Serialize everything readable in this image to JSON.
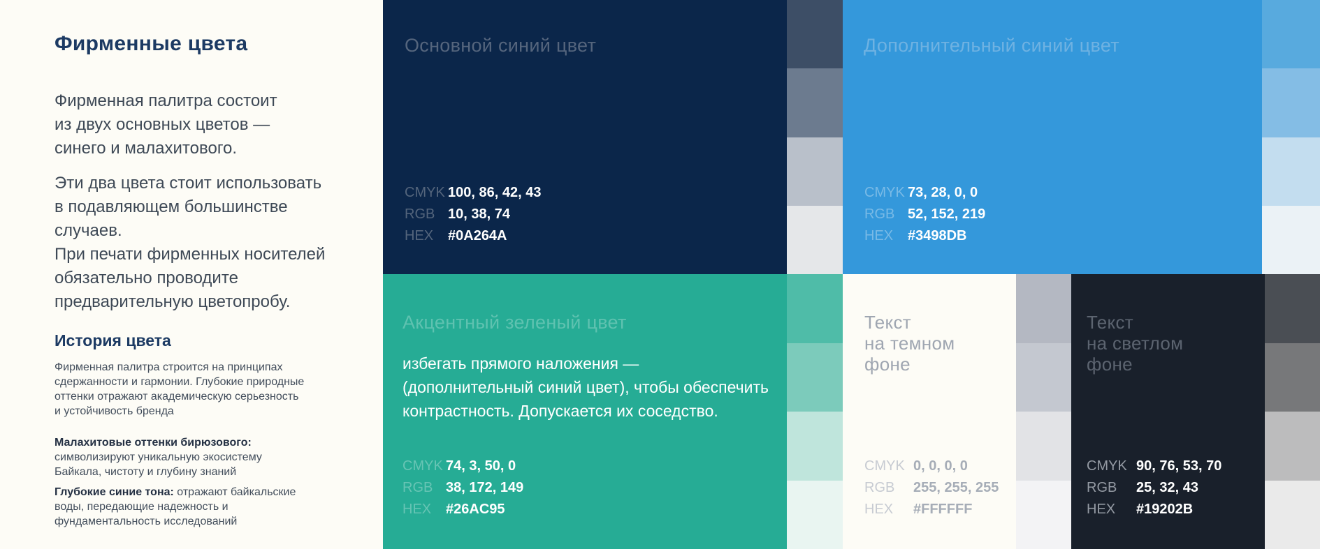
{
  "page": {
    "background": "#FDFCF6"
  },
  "left_panel": {
    "title": "Фирменные цвета",
    "intro_lines": [
      "Фирменная палитра состоит",
      "из двух основных цветов —",
      "синего и малахитового."
    ],
    "usage_lines": [
      "Эти два цвета стоит использовать",
      "в подавляющем большинстве случаев.",
      "При печати фирменных носителей",
      "обязательно  проводите",
      "предварительную цветопробу."
    ],
    "history_heading": "История цвета",
    "history_lines": [
      "Фирменная палитра строится на принципах",
      "сдержанности и гармонии. Глубокие природные",
      "оттенки отражают академическую серьезность",
      "и устойчивость бренда"
    ],
    "malachite_heading": "Малахитовые оттенки бирюзового:",
    "malachite_lines": [
      "символизируют уникальную экосистему",
      "Байкала, чистоту и глубину знаний"
    ],
    "deep_blue_heading": "Глубокие синие тона:",
    "deep_blue_inline": " отражают байкальские",
    "deep_blue_lines": [
      "воды, передающие надежность и",
      "фундаментальность исследований"
    ]
  },
  "panels": {
    "primary": {
      "title": "Основной синий цвет",
      "color": "#0B264A",
      "specs": [
        {
          "label": "CMYK",
          "value": "100, 86, 42, 43"
        },
        {
          "label": "RGB",
          "value": "10, 38, 74"
        },
        {
          "label": "HEX",
          "value": "#0A264A"
        }
      ]
    },
    "secondary": {
      "title": "Дополнительный синий цвет",
      "color": "#3498DB",
      "specs": [
        {
          "label": "CMYK",
          "value": "73, 28, 0, 0"
        },
        {
          "label": "RGB",
          "value": "52, 152, 219"
        },
        {
          "label": "HEX",
          "value": "#3498DB"
        }
      ]
    },
    "accent": {
      "title": "Акцентный зеленый цвет",
      "color": "#26AC95",
      "body_lines": [
        "избегать прямого наложения —",
        "(дополнительный синий цвет), чтобы обеспечить",
        "контрастность. Допускается их соседство."
      ],
      "specs": [
        {
          "label": "CMYK",
          "value": "74, 3, 50, 0"
        },
        {
          "label": "RGB",
          "value": "38, 172, 149"
        },
        {
          "label": "HEX",
          "value": "#26AC95"
        }
      ]
    },
    "text_on_dark": {
      "title_lines": [
        "Текст",
        "на темном",
        "фоне"
      ],
      "color": "#FDFCF6",
      "specs": [
        {
          "label": "CMYK",
          "value": "0, 0, 0, 0"
        },
        {
          "label": "RGB",
          "value": "255, 255, 255"
        },
        {
          "label": "HEX",
          "value": "#FFFFFF"
        }
      ]
    },
    "text_on_light": {
      "title_lines": [
        "Текст",
        "на светлом",
        "фоне"
      ],
      "color": "#19202B",
      "specs": [
        {
          "label": "CMYK",
          "value": "90, 76, 53, 70"
        },
        {
          "label": "RGB",
          "value": "25, 32, 43"
        },
        {
          "label": "HEX",
          "value": "#19202B"
        }
      ]
    }
  },
  "tints": {
    "navy_column": [
      "#3D4E66",
      "#6C7B8F",
      "#B9C0CA",
      "#E5E7E9"
    ],
    "blue_column": [
      "#58AADE",
      "#84BDE5",
      "#C3DDEF",
      "#EBF2F6"
    ],
    "green_column": [
      "#4FBCA8",
      "#7CCBBB",
      "#BFE5DC",
      "#E9F5F1"
    ],
    "gray_column": [
      "#B4B8C2",
      "#C4C8D0",
      "#E2E3E6",
      "#F3F3F5"
    ],
    "dark_gray_column": [
      "#4A4E54",
      "#77787A",
      "#BCBCBD",
      "#EAEAEA"
    ]
  }
}
